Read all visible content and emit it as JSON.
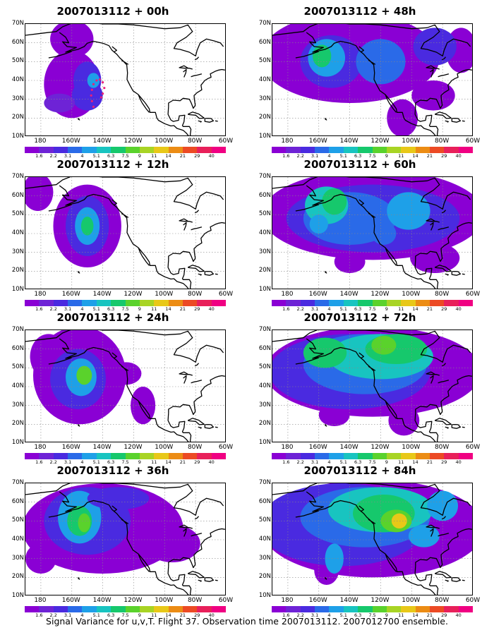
{
  "panels": [
    {
      "title": "2007013112 + 00h"
    },
    {
      "title": "2007013112 + 48h"
    },
    {
      "title": "2007013112 + 12h"
    },
    {
      "title": "2007013112 + 60h"
    },
    {
      "title": "2007013112 + 24h"
    },
    {
      "title": "2007013112 + 72h"
    },
    {
      "title": "2007013112 + 36h"
    },
    {
      "title": "2007013112 + 84h"
    }
  ],
  "lat_labels": [
    "70N",
    "60N",
    "50N",
    "40N",
    "30N",
    "20N",
    "10N"
  ],
  "lon_labels": [
    "180",
    "160W",
    "140W",
    "120W",
    "100W",
    "80W",
    "60W"
  ],
  "colorbar": {
    "labels": [
      "1.6",
      "2.2",
      "3.1",
      "4",
      "5.1",
      "6.3",
      "7.5",
      "9",
      "11",
      "14",
      "21",
      "29",
      "40"
    ],
    "colors": [
      "#8a00d4",
      "#6e23d6",
      "#4a2ae0",
      "#2a6ae8",
      "#1ea0e8",
      "#18c4c0",
      "#16c86c",
      "#5ad22c",
      "#a8d424",
      "#e8c818",
      "#ec8c14",
      "#ec4a24",
      "#e8205a",
      "#f00082"
    ]
  },
  "caption": "Signal Variance for u,v,T. Flight 37. Observation time 2007013112. 2007012700 ensemble."
}
